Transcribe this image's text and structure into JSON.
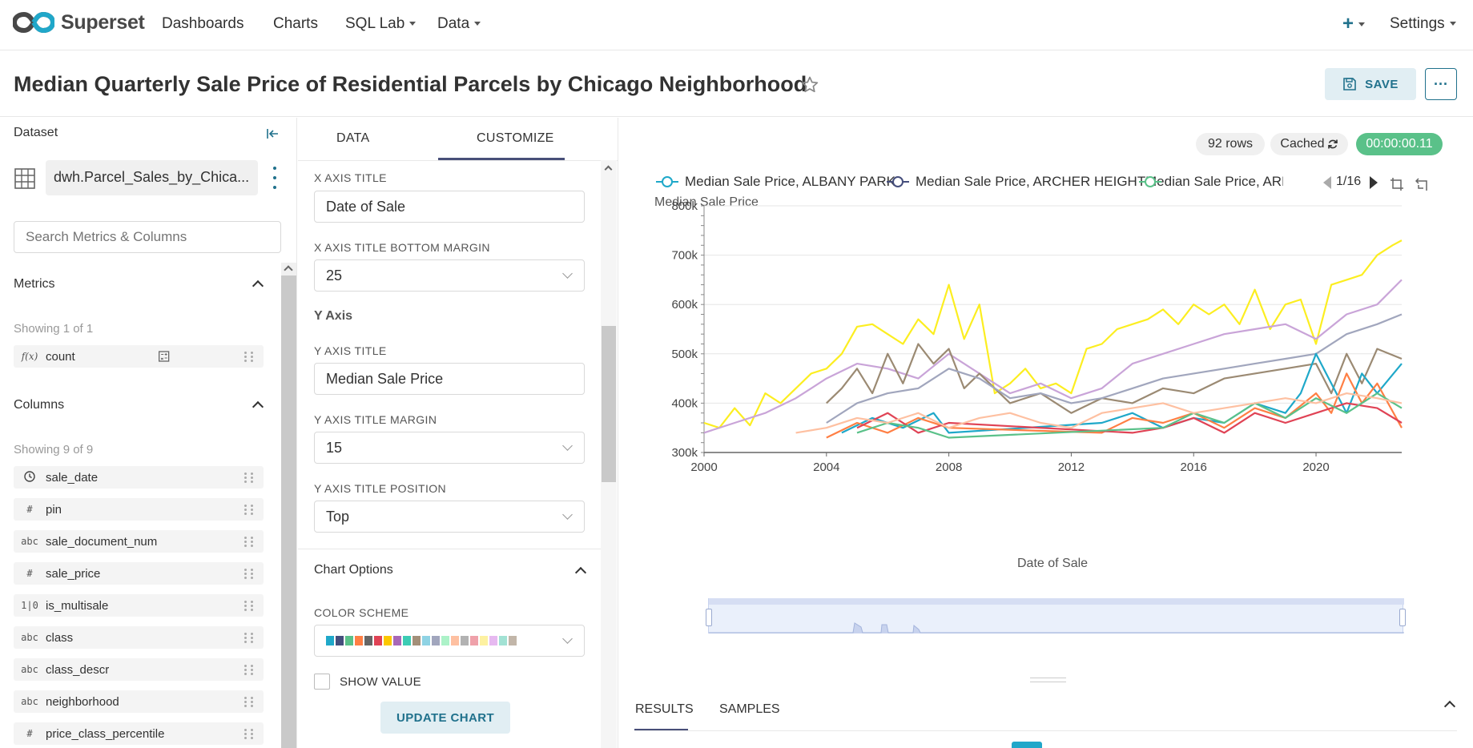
{
  "navbar": {
    "brand": "Superset",
    "items": [
      {
        "label": "Dashboards"
      },
      {
        "label": "Charts"
      },
      {
        "label": "SQL Lab"
      },
      {
        "label": "Data"
      }
    ],
    "plus_icon": "plus-icon",
    "settings_label": "Settings"
  },
  "header": {
    "title": "Median Quarterly Sale Price of Residential Parcels by Chicago Neighborhood",
    "save_label": "SAVE",
    "more_label": "···"
  },
  "dataset_panel": {
    "title": "Dataset",
    "dataset_name": "dwh.Parcel_Sales_by_Chica...",
    "search_placeholder": "Search Metrics & Columns",
    "metrics_title": "Metrics",
    "metrics_showing": "Showing 1 of 1",
    "metrics": [
      {
        "type": "f(x)",
        "name": "count"
      }
    ],
    "columns_title": "Columns",
    "columns_showing": "Showing 9 of 9",
    "columns": [
      {
        "type": "clock",
        "name": "sale_date"
      },
      {
        "type": "#",
        "name": "pin"
      },
      {
        "type": "abc",
        "name": "sale_document_num"
      },
      {
        "type": "#",
        "name": "sale_price"
      },
      {
        "type": "1|0",
        "name": "is_multisale"
      },
      {
        "type": "abc",
        "name": "class"
      },
      {
        "type": "abc",
        "name": "class_descr"
      },
      {
        "type": "abc",
        "name": "neighborhood"
      },
      {
        "type": "#",
        "name": "price_class_percentile"
      }
    ]
  },
  "control_panel": {
    "tabs": [
      {
        "label": "DATA"
      },
      {
        "label": "CUSTOMIZE"
      }
    ],
    "x_axis_title_label": "X AXIS TITLE",
    "x_axis_title_value": "Date of Sale",
    "x_axis_bottom_margin_label": "X AXIS TITLE BOTTOM MARGIN",
    "x_axis_bottom_margin_value": "25",
    "y_axis_section": "Y Axis",
    "y_axis_title_label": "Y AXIS TITLE",
    "y_axis_title_value": "Median Sale Price",
    "y_axis_title_margin_label": "Y AXIS TITLE MARGIN",
    "y_axis_title_margin_value": "15",
    "y_axis_title_position_label": "Y AXIS TITLE POSITION",
    "y_axis_title_position_value": "Top",
    "chart_options_title": "Chart Options",
    "color_scheme_label": "COLOR SCHEME",
    "color_scheme": [
      "#1fa8c9",
      "#454e7c",
      "#5ac189",
      "#ff7f44",
      "#666666",
      "#e04355",
      "#fcc700",
      "#a868b7",
      "#3cccb4",
      "#a38f79",
      "#8fd3e4",
      "#a1a6bd",
      "#acf2c8",
      "#fec0a1",
      "#b2b2b2",
      "#efa1aa",
      "#fdf1a1",
      "#e6b9f0",
      "#a2e2d4",
      "#c2b6a9"
    ],
    "show_value_label": "SHOW VALUE",
    "update_label": "UPDATE CHART"
  },
  "chart_status": {
    "rows": "92 rows",
    "cached": "Cached",
    "time": "00:00:00.11"
  },
  "chart_data": {
    "type": "line",
    "xlabel": "Date of Sale",
    "ylabel": "Median Sale Price",
    "xlim": [
      2000,
      2022.8
    ],
    "ylim": [
      300000,
      800000
    ],
    "x_ticks": [
      "2000",
      "2004",
      "2008",
      "2012",
      "2016",
      "2020"
    ],
    "y_ticks": [
      "300k",
      "400k",
      "500k",
      "600k",
      "700k",
      "800k"
    ],
    "legend_page": "1/16",
    "legend": [
      {
        "name": "Median Sale Price, ALBANY PARK",
        "color": "#1fa8c9"
      },
      {
        "name": "Median Sale Price, ARCHER HEIGHTS",
        "color": "#454e7c"
      },
      {
        "name": "Median Sale Price, ARMC",
        "color": "#5ac189"
      }
    ],
    "series": [
      {
        "color": "#fcee21",
        "x": [
          2000,
          2000.5,
          2001,
          2001.5,
          2002,
          2002.5,
          2003,
          2003.5,
          2004,
          2004.5,
          2005,
          2005.5,
          2006,
          2006.5,
          2007,
          2007.5,
          2008,
          2008.5,
          2009,
          2009.5,
          2010,
          2010.5,
          2011,
          2011.5,
          2012,
          2012.5,
          2013,
          2013.5,
          2014,
          2014.5,
          2015,
          2015.5,
          2016,
          2016.5,
          2017,
          2017.5,
          2018,
          2018.5,
          2019,
          2019.5,
          2020,
          2020.5,
          2021,
          2021.5,
          2022,
          2022.5,
          2022.8
        ],
        "values": [
          360000,
          350000,
          390000,
          355000,
          420000,
          400000,
          430000,
          460000,
          470000,
          500000,
          555000,
          560000,
          540000,
          520000,
          570000,
          540000,
          640000,
          530000,
          600000,
          420000,
          440000,
          470000,
          430000,
          440000,
          420000,
          510000,
          520000,
          550000,
          560000,
          570000,
          590000,
          560000,
          600000,
          580000,
          600000,
          560000,
          630000,
          550000,
          600000,
          610000,
          520000,
          640000,
          650000,
          660000,
          700000,
          720000,
          730000
        ]
      },
      {
        "color": "#c9a4d8",
        "x": [
          2000,
          2001,
          2002,
          2003,
          2004,
          2005,
          2006,
          2007,
          2008,
          2009,
          2010,
          2011,
          2012,
          2013,
          2014,
          2015,
          2016,
          2017,
          2018,
          2019,
          2020,
          2021,
          2022,
          2022.8
        ],
        "values": [
          340000,
          360000,
          380000,
          410000,
          450000,
          480000,
          470000,
          450000,
          500000,
          460000,
          420000,
          440000,
          410000,
          430000,
          480000,
          500000,
          520000,
          540000,
          550000,
          560000,
          530000,
          580000,
          600000,
          650000
        ]
      },
      {
        "color": "#9b8a73",
        "x": [
          2004,
          2004.5,
          2005,
          2005.5,
          2006,
          2006.5,
          2007,
          2007.5,
          2008,
          2008.5,
          2009,
          2010,
          2011,
          2012,
          2013,
          2014,
          2015,
          2016,
          2017,
          2018,
          2019,
          2020,
          2020.5,
          2021,
          2021.5,
          2022,
          2022.8
        ],
        "values": [
          400000,
          430000,
          470000,
          420000,
          500000,
          440000,
          520000,
          480000,
          510000,
          430000,
          460000,
          400000,
          420000,
          380000,
          410000,
          400000,
          430000,
          420000,
          450000,
          460000,
          470000,
          480000,
          420000,
          500000,
          440000,
          510000,
          490000
        ]
      },
      {
        "color": "#a1a6bd",
        "x": [
          2004,
          2005,
          2006,
          2007,
          2008,
          2009,
          2010,
          2011,
          2012,
          2013,
          2014,
          2015,
          2016,
          2017,
          2018,
          2019,
          2020,
          2021,
          2022,
          2022.8
        ],
        "values": [
          360000,
          400000,
          420000,
          430000,
          470000,
          450000,
          410000,
          420000,
          400000,
          410000,
          430000,
          450000,
          460000,
          470000,
          480000,
          490000,
          500000,
          540000,
          560000,
          580000
        ]
      },
      {
        "color": "#1fa8c9",
        "x": [
          2004.5,
          2005.5,
          2006.5,
          2007.5,
          2008,
          2013,
          2014,
          2015,
          2016,
          2017,
          2018,
          2019,
          2019.5,
          2020,
          2020.5,
          2021,
          2021.5,
          2022,
          2022.8
        ],
        "values": [
          340000,
          370000,
          350000,
          380000,
          340000,
          360000,
          380000,
          350000,
          370000,
          360000,
          400000,
          380000,
          420000,
          500000,
          440000,
          380000,
          460000,
          420000,
          480000
        ]
      },
      {
        "color": "#ff7f44",
        "x": [
          2004,
          2005,
          2006,
          2007,
          2008,
          2013,
          2014,
          2015,
          2016,
          2017,
          2018,
          2019,
          2020,
          2020.5,
          2021,
          2021.5,
          2022,
          2022.8
        ],
        "values": [
          330000,
          360000,
          340000,
          370000,
          350000,
          340000,
          370000,
          360000,
          380000,
          350000,
          390000,
          370000,
          420000,
          380000,
          460000,
          400000,
          440000,
          350000
        ]
      },
      {
        "color": "#e04355",
        "x": [
          2005,
          2006,
          2007,
          2008,
          2014,
          2015,
          2016,
          2017,
          2018,
          2019,
          2020,
          2021,
          2022,
          2022.8
        ],
        "values": [
          350000,
          380000,
          340000,
          360000,
          340000,
          350000,
          370000,
          340000,
          380000,
          360000,
          380000,
          400000,
          390000,
          360000
        ]
      },
      {
        "color": "#5ac189",
        "x": [
          2005,
          2006,
          2007,
          2008,
          2015,
          2016,
          2017,
          2018,
          2019,
          2020,
          2021,
          2022,
          2022.8
        ],
        "values": [
          340000,
          360000,
          350000,
          330000,
          350000,
          380000,
          360000,
          400000,
          370000,
          410000,
          380000,
          420000,
          390000
        ]
      },
      {
        "color": "#fec0a1",
        "x": [
          2003,
          2004,
          2005,
          2006,
          2007,
          2008,
          2009,
          2010,
          2011,
          2012,
          2013,
          2014,
          2015,
          2016,
          2017,
          2018,
          2019,
          2020,
          2021,
          2022,
          2022.8
        ],
        "values": [
          340000,
          350000,
          370000,
          360000,
          380000,
          350000,
          370000,
          380000,
          360000,
          350000,
          380000,
          390000,
          400000,
          380000,
          390000,
          400000,
          410000,
          400000,
          420000,
          410000,
          400000
        ]
      }
    ]
  }
}
